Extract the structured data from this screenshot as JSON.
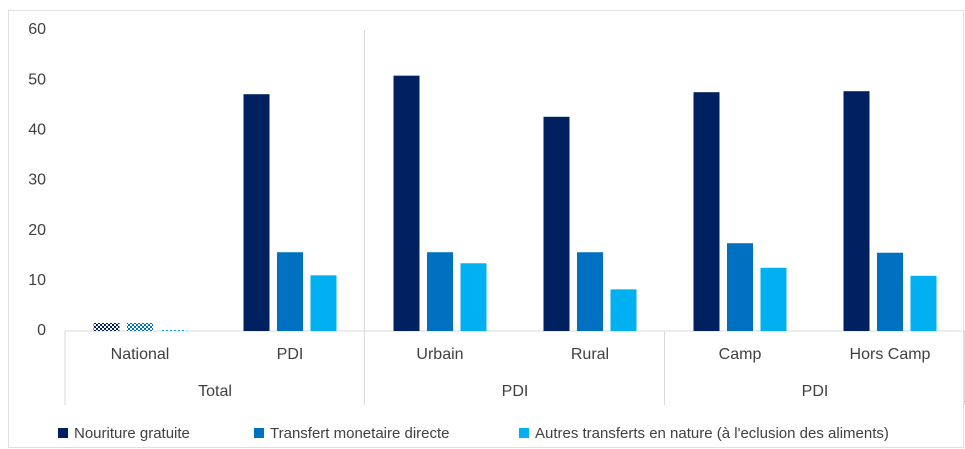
{
  "chart_data": {
    "type": "bar",
    "categories": [
      "National",
      "PDI",
      "Urbain",
      "Rural",
      "Camp",
      "Hors Camp"
    ],
    "groups": [
      {
        "label": "Total",
        "span": 2
      },
      {
        "label": "PDI",
        "span": 2
      },
      {
        "label": "PDI",
        "span": 2
      }
    ],
    "hatched": [
      true,
      false,
      false,
      false,
      false,
      false
    ],
    "series": [
      {
        "name": "Nouriture gratuite",
        "color": "#002060",
        "values": [
          1.6,
          47.2,
          50.9,
          42.7,
          47.6,
          47.8
        ]
      },
      {
        "name": "Transfert monetaire directe",
        "color": "#0070c0",
        "values": [
          1.6,
          15.7,
          15.7,
          15.7,
          17.5,
          15.6
        ]
      },
      {
        "name": "Autres transferts en nature (à l'eclusion des aliments)",
        "color": "#00b0f0",
        "values": [
          0.2,
          11.1,
          13.5,
          8.3,
          12.6,
          11.0
        ]
      }
    ],
    "ylim": [
      0,
      60
    ],
    "yticks": [
      0,
      10,
      20,
      30,
      40,
      50,
      60
    ],
    "grid": false,
    "legend": "bottom"
  }
}
